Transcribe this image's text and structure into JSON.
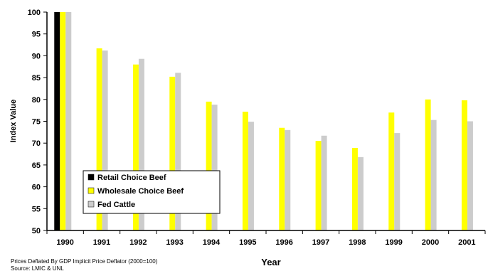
{
  "chart_data": {
    "type": "bar",
    "categories": [
      "1990",
      "1991",
      "1992",
      "1993",
      "1994",
      "1995",
      "1996",
      "1997",
      "1998",
      "1999",
      "2000",
      "2001"
    ],
    "series": [
      {
        "name": "Retail Choice Beef",
        "color": "#000000",
        "values": [
          100,
          null,
          null,
          null,
          null,
          null,
          null,
          null,
          null,
          null,
          null,
          null
        ]
      },
      {
        "name": "Wholesale Choice Beef",
        "color": "#ffff00",
        "values": [
          100,
          91.7,
          88,
          85.2,
          79.5,
          77.2,
          73.5,
          70.5,
          68.9,
          77,
          80,
          79.8
        ]
      },
      {
        "name": "Fed Cattle",
        "color": "#cccccc",
        "values": [
          100,
          91.2,
          89.3,
          86.1,
          78.8,
          74.9,
          73,
          71.7,
          66.8,
          72.3,
          75.3,
          75
        ]
      }
    ],
    "yticks": [
      50,
      55,
      60,
      65,
      70,
      75,
      80,
      85,
      90,
      95,
      100
    ],
    "ylim": [
      50,
      100
    ],
    "xlabel": "Year",
    "ylabel": "Index Value",
    "legend_position": "lower-left",
    "grid": false
  },
  "footnote": {
    "line1": "Prices Deflated By GDP Implicit Price Deflator (2000=100)",
    "line2": "Source:  LMIC & UNL"
  }
}
